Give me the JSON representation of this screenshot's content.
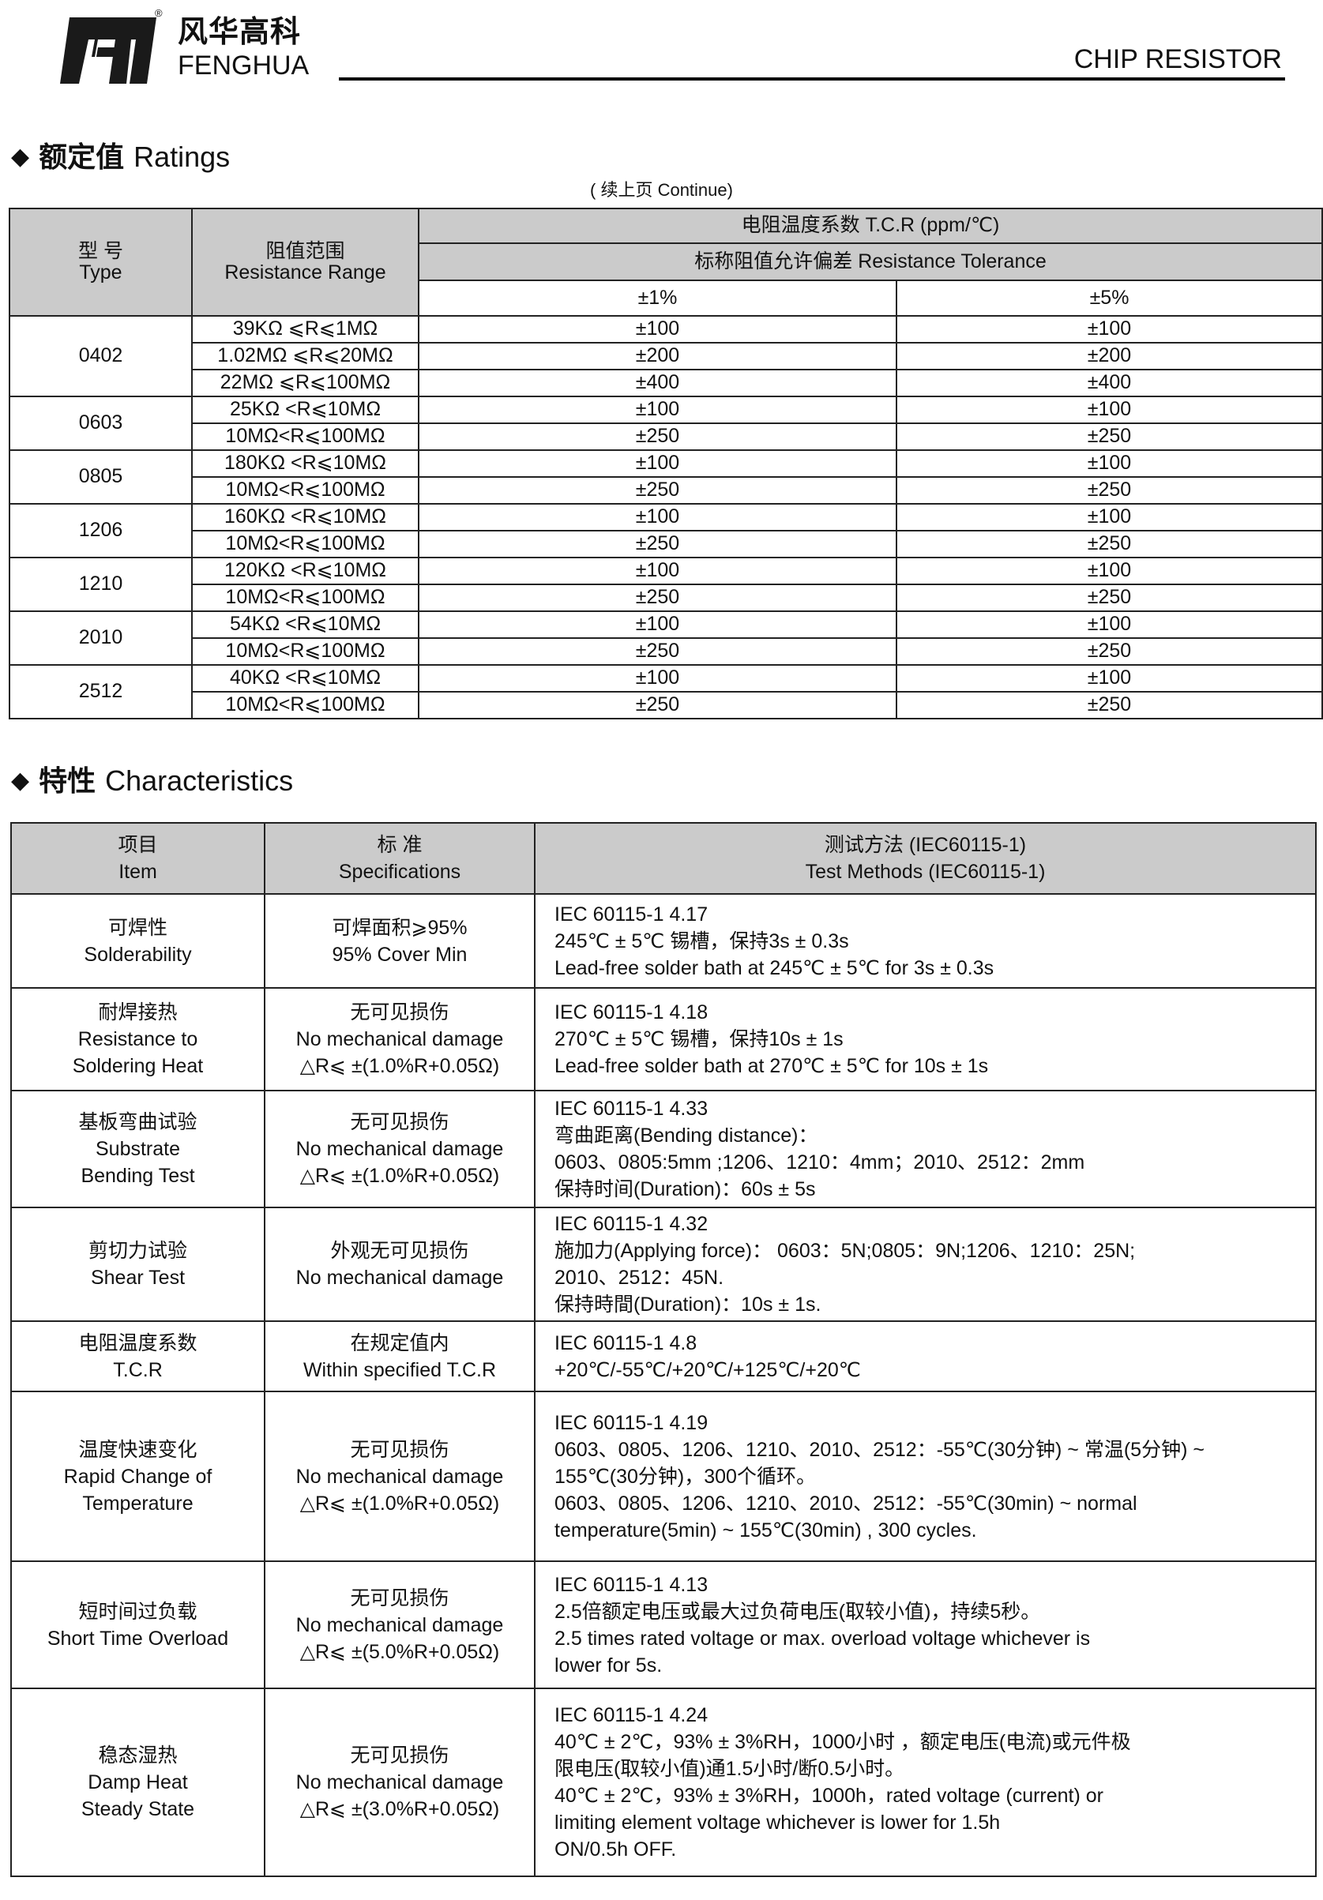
{
  "header": {
    "brand_cn": "风华高科",
    "brand_en": "FENGHUA",
    "registered": "®",
    "doc_title": "CHIP RESISTOR"
  },
  "ratings": {
    "title_cn": "额定值",
    "title_en": "Ratings",
    "continue": "( 续上页 Continue)",
    "headers": {
      "type": [
        "型 号",
        "Type"
      ],
      "range": [
        "阻值范围",
        "Resistance Range"
      ],
      "tcr": "电阻温度系数  T.C.R (ppm/℃)",
      "tolerance": "标称阻值允许偏差    Resistance Tolerance",
      "tol1": "±1%",
      "tol5": "±5%"
    },
    "rows": [
      {
        "type": "0402",
        "ranges": [
          {
            "range": "39KΩ ⩽R⩽1MΩ",
            "tol1": "±100",
            "tol5": "±100"
          },
          {
            "range": "1.02MΩ ⩽R⩽20MΩ",
            "tol1": "±200",
            "tol5": "±200"
          },
          {
            "range": "22MΩ ⩽R⩽100MΩ",
            "tol1": "±400",
            "tol5": "±400"
          }
        ]
      },
      {
        "type": "0603",
        "ranges": [
          {
            "range": "25KΩ <R⩽10MΩ",
            "tol1": "±100",
            "tol5": "±100"
          },
          {
            "range": "10MΩ<R⩽100MΩ",
            "tol1": "±250",
            "tol5": "±250"
          }
        ]
      },
      {
        "type": "0805",
        "ranges": [
          {
            "range": "180KΩ <R⩽10MΩ",
            "tol1": "±100",
            "tol5": "±100"
          },
          {
            "range": "10MΩ<R⩽100MΩ",
            "tol1": "±250",
            "tol5": "±250"
          }
        ]
      },
      {
        "type": "1206",
        "ranges": [
          {
            "range": "160KΩ <R⩽10MΩ",
            "tol1": "±100",
            "tol5": "±100"
          },
          {
            "range": "10MΩ<R⩽100MΩ",
            "tol1": "±250",
            "tol5": "±250"
          }
        ]
      },
      {
        "type": "1210",
        "ranges": [
          {
            "range": "120KΩ <R⩽10MΩ",
            "tol1": "±100",
            "tol5": "±100"
          },
          {
            "range": "10MΩ<R⩽100MΩ",
            "tol1": "±250",
            "tol5": "±250"
          }
        ]
      },
      {
        "type": "2010",
        "ranges": [
          {
            "range": "54KΩ <R⩽10MΩ",
            "tol1": "±100",
            "tol5": "±100"
          },
          {
            "range": "10MΩ<R⩽100MΩ",
            "tol1": "±250",
            "tol5": "±250"
          }
        ]
      },
      {
        "type": "2512",
        "ranges": [
          {
            "range": "40KΩ <R⩽10MΩ",
            "tol1": "±100",
            "tol5": "±100"
          },
          {
            "range": "10MΩ<R⩽100MΩ",
            "tol1": "±250",
            "tol5": "±250"
          }
        ]
      }
    ]
  },
  "characteristics": {
    "title_cn": "特性",
    "title_en": "Characteristics",
    "headers": {
      "item": [
        "项目",
        "Item"
      ],
      "spec": [
        "标 准",
        "Specifications"
      ],
      "method": [
        "测试方法 (IEC60115-1)",
        "Test Methods  (IEC60115-1)"
      ]
    },
    "rows": [
      {
        "item": [
          "可焊性",
          "Solderability"
        ],
        "spec": [
          "可焊面积⩾95%",
          "95% Cover Min"
        ],
        "method": [
          "IEC 60115-1 4.17",
          "245℃ ± 5℃ 锡槽，保持3s ± 0.3s",
          "Lead-free solder bath at 245℃ ± 5℃ for 3s ± 0.3s"
        ]
      },
      {
        "item": [
          "耐焊接热",
          "Resistance to",
          "Soldering Heat"
        ],
        "spec": [
          "无可见损伤",
          "No mechanical damage",
          "△R⩽ ±(1.0%R+0.05Ω)"
        ],
        "method": [
          "IEC 60115-1 4.18",
          "270℃ ± 5℃ 锡槽，保持10s ± 1s",
          "Lead-free solder bath at 270℃ ± 5℃ for 10s ± 1s"
        ]
      },
      {
        "item": [
          "基板弯曲试验",
          "Substrate",
          "Bending Test"
        ],
        "spec": [
          "无可见损伤",
          "No mechanical damage",
          "△R⩽ ±(1.0%R+0.05Ω)"
        ],
        "method": [
          "IEC 60115-1 4.33",
          "弯曲距离(Bending distance)：",
          "0603、0805:5mm ;1206、1210：4mm；2010、2512：2mm",
          "保持时间(Duration)：60s ± 5s"
        ]
      },
      {
        "item": [
          "剪切力试验",
          "Shear Test"
        ],
        "spec": [
          "外观无可见损伤",
          "No mechanical damage"
        ],
        "method": [
          "IEC 60115-1 4.32",
          "施加力(Applying force)： 0603：5N;0805：9N;1206、1210：25N;",
          "2010、2512：45N.",
          "保持時間(Duration)：10s ± 1s."
        ]
      },
      {
        "item": [
          "电阻温度系数",
          "T.C.R"
        ],
        "spec": [
          "在规定值内",
          "Within specified T.C.R"
        ],
        "method": [
          "IEC 60115-1 4.8",
          "+20℃/-55℃/+20℃/+125℃/+20℃"
        ]
      },
      {
        "item": [
          "温度快速变化",
          "Rapid Change of",
          "Temperature"
        ],
        "spec": [
          "无可见损伤",
          "No mechanical damage",
          "△R⩽ ±(1.0%R+0.05Ω)"
        ],
        "method": [
          "IEC 60115-1 4.19",
          "0603、0805、1206、1210、2010、2512：-55℃(30分钟) ~ 常温(5分钟) ~",
          "155℃(30分钟)，300个循环。",
          "0603、0805、1206、1210、2010、2512：-55℃(30min) ~ normal",
          "temperature(5min) ~ 155℃(30min) , 300 cycles."
        ]
      },
      {
        "item": [
          "短时间过负载",
          "Short Time Overload"
        ],
        "spec": [
          "无可见损伤",
          "No mechanical damage",
          "△R⩽ ±(5.0%R+0.05Ω)"
        ],
        "method": [
          "IEC 60115-1 4.13",
          "2.5倍额定电压或最大过负荷电压(取较小值)，持续5秒。",
          "2.5 times rated voltage or max. overload voltage whichever is",
          "lower for 5s."
        ]
      },
      {
        "item": [
          "稳态湿热",
          "Damp Heat",
          "Steady State"
        ],
        "spec": [
          "无可见损伤",
          "No mechanical damage",
          "△R⩽ ±(3.0%R+0.05Ω)"
        ],
        "method": [
          "IEC 60115-1 4.24",
          "40℃ ± 2℃，93% ± 3%RH，1000小时 ，额定电压(电流)或元件极",
          "限电压(取较小值)通1.5小时/断0.5小时。",
          "40℃ ± 2℃，93% ± 3%RH，1000h，rated voltage (current) or",
          "limiting element voltage whichever is lower for 1.5h",
          "ON/0.5h OFF."
        ]
      }
    ]
  }
}
